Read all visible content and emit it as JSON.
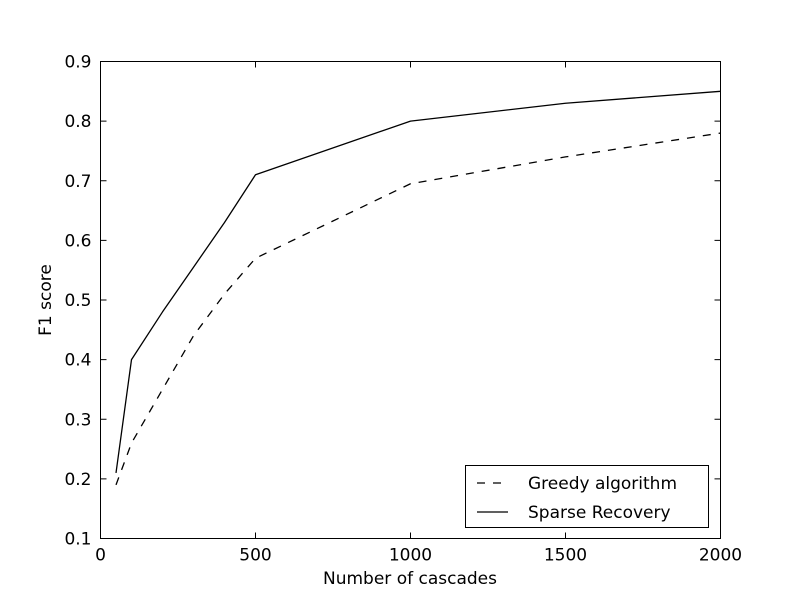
{
  "figure": {
    "background_color": "#ffffff",
    "axes_color": "#000000",
    "line_color": "#000000"
  },
  "chart_data": {
    "type": "line",
    "title": "",
    "xlabel": "Number of cascades",
    "ylabel": "F1 score",
    "xlim": [
      0,
      2000
    ],
    "ylim": [
      0.1,
      0.9
    ],
    "xticks": [
      "0",
      "500",
      "1000",
      "1500",
      "2000"
    ],
    "yticks": [
      "0.1",
      "0.2",
      "0.3",
      "0.4",
      "0.5",
      "0.6",
      "0.7",
      "0.8",
      "0.9"
    ],
    "grid": false,
    "legend_position": "lower right",
    "x": [
      50,
      100,
      200,
      300,
      400,
      500,
      1000,
      1500,
      2000
    ],
    "series": [
      {
        "name": "Greedy algorithm",
        "style": "dashed",
        "color": "#000000",
        "values": [
          0.19,
          0.26,
          0.35,
          0.44,
          0.51,
          0.57,
          0.695,
          0.74,
          0.78
        ]
      },
      {
        "name": "Sparse Recovery",
        "style": "solid",
        "color": "#000000",
        "values": [
          0.21,
          0.4,
          0.48,
          0.555,
          0.63,
          0.71,
          0.8,
          0.83,
          0.85
        ]
      }
    ]
  }
}
